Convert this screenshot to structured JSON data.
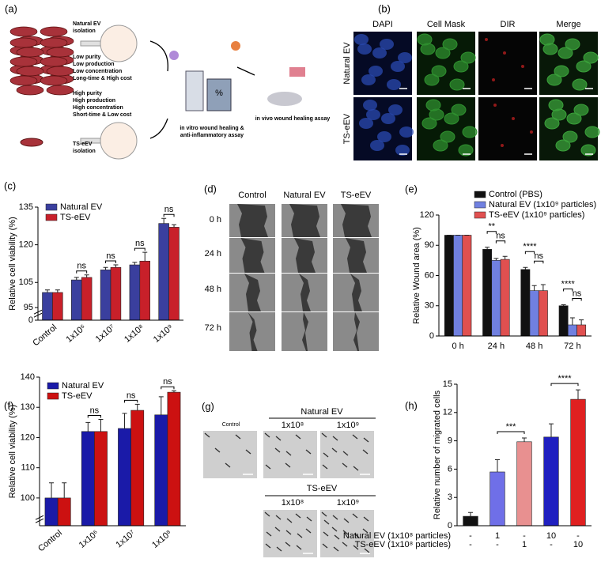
{
  "panel_a": {
    "label": "(a)",
    "natural": {
      "title": "Natural EV",
      "subtitle": "isolation",
      "lines": [
        "Low purity",
        "Low production",
        "Low concentration",
        "Long-time & High cost"
      ]
    },
    "ts": {
      "title": "TS-eEV",
      "subtitle": "isolation",
      "lines": [
        "High purity",
        "High production",
        "High concentration",
        "Short-time & Low cost"
      ]
    },
    "in_vitro": [
      "in vitro wound healing &",
      "anti-inflammatory assay"
    ],
    "in_vivo": "in vivo wound healing assay",
    "icon_text": "%"
  },
  "panel_b": {
    "label": "(b)",
    "columns": [
      "DAPI",
      "Cell Mask",
      "DIR",
      "Merge"
    ],
    "column_colors": [
      "#3a50c8",
      "#3a9a3a",
      "#d02020",
      "#000000"
    ],
    "rows": [
      "Natural EV",
      "TS-eEV"
    ]
  },
  "panel_d": {
    "label": "(d)",
    "columns": [
      "Control",
      "Natural EV",
      "TS-eEV"
    ],
    "rows": [
      "0 h",
      "24 h",
      "48 h",
      "72 h"
    ]
  },
  "panel_g": {
    "label": "(g)",
    "control": "Control",
    "natural": "Natural EV",
    "natural_doses": [
      "1x10⁸",
      "1x10⁹"
    ],
    "ts": "TS-eEV",
    "ts_doses": [
      "1x10⁸",
      "1x10⁹"
    ]
  },
  "chart_data": [
    {
      "type": "bar",
      "panel": "(c)",
      "y_label": "Relative cell viability (%)",
      "categories": [
        "Control",
        "1x10⁶",
        "1x10⁷",
        "1x10⁸",
        "1x10⁹"
      ],
      "series": [
        {
          "name": "Natural EV",
          "color": "#3a3f9e",
          "values": [
            101,
            106,
            110,
            112,
            128.5
          ],
          "errors": [
            1,
            1,
            1,
            1,
            2
          ]
        },
        {
          "name": "TS-eEV",
          "color": "#c8202a",
          "values": [
            101,
            107,
            111,
            113.5,
            127
          ],
          "errors": [
            1,
            1,
            1,
            3.5,
            1
          ]
        }
      ],
      "ylim": [
        0,
        135
      ],
      "axis_break": [
        0,
        95
      ],
      "yticks": [
        0,
        95,
        105,
        120,
        135
      ],
      "annotations": [
        null,
        "ns",
        "ns",
        "ns",
        "ns"
      ]
    },
    {
      "type": "bar",
      "panel": "(e)",
      "y_label": "Relative Wound area (%)",
      "categories": [
        "0 h",
        "24 h",
        "48 h",
        "72 h"
      ],
      "series": [
        {
          "name": "Control (PBS)",
          "color": "#111111",
          "values": [
            100,
            86,
            66,
            30
          ],
          "errors": [
            0,
            2,
            2,
            1
          ]
        },
        {
          "name": "Natural EV (1x10⁹ particles)",
          "color": "#7080e0",
          "values": [
            100,
            75,
            45,
            11
          ],
          "errors": [
            0,
            2,
            5,
            7
          ]
        },
        {
          "name": "TS-eEV (1x10⁹ particles)",
          "color": "#e05050",
          "values": [
            100,
            76,
            45,
            11
          ],
          "errors": [
            0,
            3,
            6,
            5
          ]
        }
      ],
      "ylim": [
        0,
        120
      ],
      "yticks": [
        0,
        30,
        60,
        90,
        120
      ],
      "annotations": [
        null,
        [
          "**",
          "ns"
        ],
        [
          "****",
          "ns"
        ],
        [
          "****",
          "ns"
        ]
      ]
    },
    {
      "type": "bar",
      "panel": "(f)",
      "y_label": "Relative cell viability (%)",
      "categories": [
        "Control",
        "1x10⁶",
        "1x10⁷",
        "1x10⁸"
      ],
      "series": [
        {
          "name": "Natural EV",
          "color": "#1a1aa8",
          "values": [
            100,
            122,
            123,
            127.5
          ],
          "errors": [
            5,
            3,
            5,
            6
          ]
        },
        {
          "name": "TS-eEV",
          "color": "#cc1111",
          "values": [
            100,
            122,
            129,
            135
          ],
          "errors": [
            5,
            4,
            2,
            0.5
          ]
        }
      ],
      "ylim": [
        0,
        140
      ],
      "axis_break": [
        0,
        95
      ],
      "yticks": [
        100,
        110,
        120,
        130,
        140
      ],
      "annotations": [
        null,
        "ns",
        "ns",
        "ns"
      ]
    },
    {
      "type": "bar",
      "panel": "(h)",
      "y_label": "Relative number of migrated cells",
      "values": [
        1,
        5.7,
        8.9,
        9.4,
        13.4
      ],
      "errors": [
        0.4,
        1.3,
        0.4,
        1.4,
        1.0
      ],
      "colors": [
        "#111111",
        "#6f6fe8",
        "#e89090",
        "#2020c0",
        "#e02020"
      ],
      "ylim": [
        0,
        15
      ],
      "yticks": [
        0,
        3,
        6,
        9,
        12,
        15
      ],
      "annotations": [
        null,
        null,
        "***",
        null,
        "****"
      ],
      "table_rows": [
        {
          "label": "Natural EV (1x10⁸ particles)",
          "cells": [
            "-",
            "1",
            "-",
            "10",
            "-"
          ]
        },
        {
          "label": "TS-eEV (1x10⁸ particles)",
          "cells": [
            "-",
            "-",
            "1",
            "-",
            "10"
          ]
        }
      ]
    }
  ]
}
